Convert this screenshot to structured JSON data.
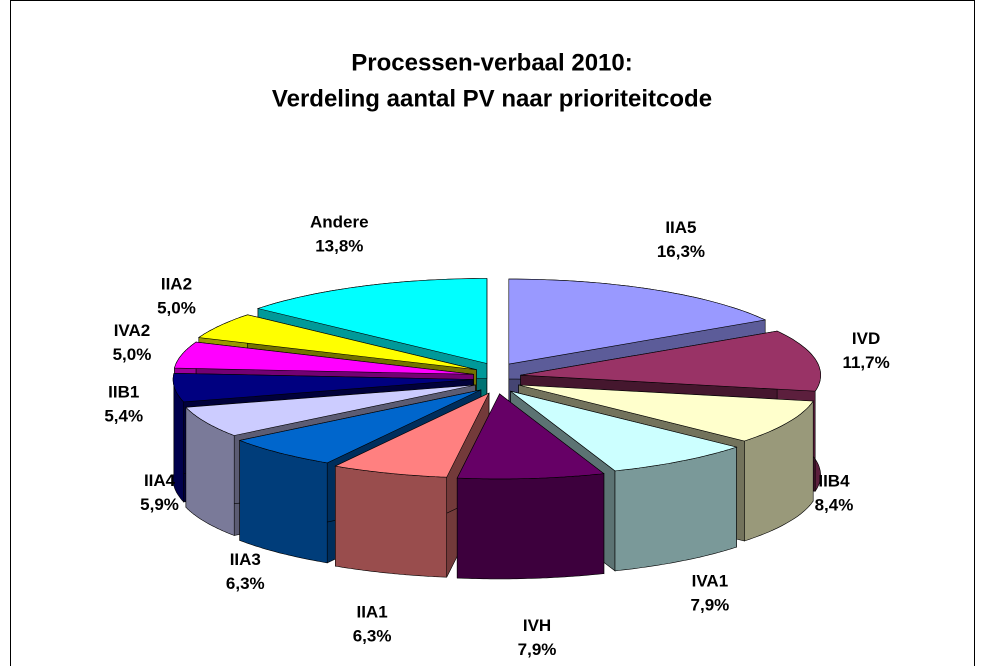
{
  "chart_data": {
    "type": "pie3d",
    "title": [
      "Processen-verbaal 2010:",
      "Verdeling aantal PV naar prioriteitcode"
    ],
    "categories": [
      "IIA5",
      "IVD",
      "IIB4",
      "IVA1",
      "IVH",
      "IIA1",
      "IIA3",
      "IIA4",
      "IIB1",
      "IVA2",
      "IIA2",
      "Andere"
    ],
    "values": [
      16.3,
      11.7,
      8.4,
      7.9,
      7.9,
      6.3,
      6.3,
      5.9,
      5.4,
      5.0,
      5.0,
      13.8
    ],
    "value_labels": [
      "16,3%",
      "11,7%",
      "8,4%",
      "7,9%",
      "7,9%",
      "6,3%",
      "6,3%",
      "5,9%",
      "5,4%",
      "5,0%",
      "5,0%",
      "13,8%"
    ],
    "colors": [
      "#9999ff",
      "#993366",
      "#ffffcc",
      "#ccffff",
      "#660066",
      "#ff8080",
      "#0066cc",
      "#ccccff",
      "#000080",
      "#ff00ff",
      "#ffff00",
      "#00ffff"
    ]
  }
}
